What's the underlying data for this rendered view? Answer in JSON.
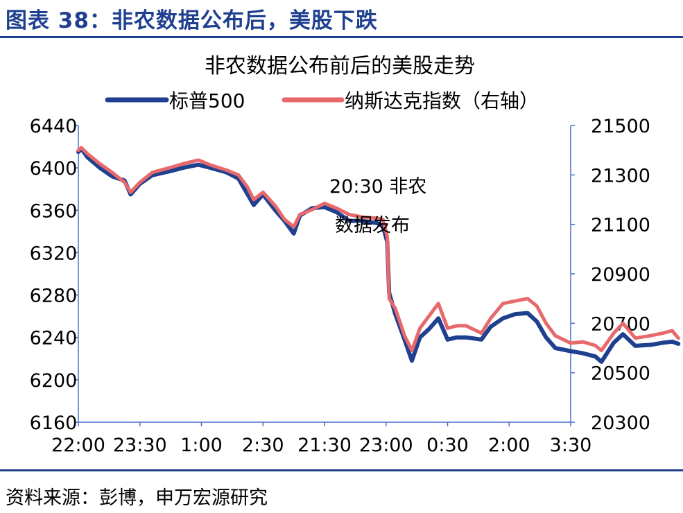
{
  "figure_title": "图表 38：非农数据公布后，美股下跌",
  "source": "资料来源：彭博，申万宏源研究",
  "colors": {
    "accent": "#1f3f8f",
    "axis": "#4472c4",
    "sp500": "#1f3f8f",
    "nasdaq": "#e8696b"
  },
  "chart_data": {
    "type": "line",
    "title": "非农数据公布前后的美股走势",
    "x_tick_labels": [
      "22:00",
      "23:30",
      "1:00",
      "2:30",
      "21:30",
      "23:00",
      "0:30",
      "2:00",
      "3:30"
    ],
    "left_axis": {
      "ylim": [
        6160,
        6440
      ],
      "ticks": [
        "6440",
        "6400",
        "6360",
        "6320",
        "6280",
        "6240",
        "6200",
        "6160"
      ]
    },
    "right_axis": {
      "ylim": [
        20300,
        21500
      ],
      "ticks": [
        "21500",
        "21300",
        "21100",
        "20900",
        "20700",
        "20500",
        "20300"
      ]
    },
    "annotation_line1": "20:30 非农",
    "annotation_line2": "数据发布",
    "legend_position": "top",
    "series": [
      {
        "name": "标普500",
        "axis": "left",
        "points": [
          [
            0,
            6415
          ],
          [
            0.05,
            6418
          ],
          [
            0.15,
            6410
          ],
          [
            0.35,
            6400
          ],
          [
            0.55,
            6392
          ],
          [
            0.75,
            6388
          ],
          [
            0.85,
            6375
          ],
          [
            1.0,
            6385
          ],
          [
            1.2,
            6393
          ],
          [
            1.5,
            6397
          ],
          [
            1.7,
            6400
          ],
          [
            1.95,
            6403
          ],
          [
            2.15,
            6400
          ],
          [
            2.4,
            6396
          ],
          [
            2.6,
            6390
          ],
          [
            2.75,
            6375
          ],
          [
            2.85,
            6365
          ],
          [
            3.0,
            6375
          ],
          [
            3.2,
            6360
          ],
          [
            3.35,
            6350
          ],
          [
            3.5,
            6338
          ],
          [
            3.6,
            6355
          ],
          [
            3.8,
            6362
          ],
          [
            4.0,
            6363
          ],
          [
            4.2,
            6358
          ],
          [
            4.4,
            6350
          ],
          [
            4.6,
            6350
          ],
          [
            4.85,
            6348
          ],
          [
            4.95,
            6345
          ],
          [
            5.02,
            6330
          ],
          [
            5.05,
            6282
          ],
          [
            5.15,
            6262
          ],
          [
            5.3,
            6238
          ],
          [
            5.42,
            6218
          ],
          [
            5.55,
            6240
          ],
          [
            5.7,
            6248
          ],
          [
            5.85,
            6258
          ],
          [
            6.0,
            6238
          ],
          [
            6.15,
            6240
          ],
          [
            6.3,
            6240
          ],
          [
            6.55,
            6238
          ],
          [
            6.7,
            6250
          ],
          [
            6.9,
            6258
          ],
          [
            7.1,
            6262
          ],
          [
            7.3,
            6263
          ],
          [
            7.45,
            6255
          ],
          [
            7.6,
            6240
          ],
          [
            7.75,
            6230
          ],
          [
            8.0,
            6227
          ],
          [
            8.2,
            6225
          ],
          [
            8.4,
            6222
          ],
          [
            8.5,
            6217
          ],
          [
            8.7,
            6235
          ],
          [
            8.85,
            6243
          ],
          [
            9.05,
            6232
          ],
          [
            9.3,
            6233
          ],
          [
            9.5,
            6235
          ],
          [
            9.65,
            6236
          ],
          [
            9.75,
            6234
          ]
        ]
      },
      {
        "name": "纳斯达克指数（右轴）",
        "axis": "right",
        "points": [
          [
            0,
            21400
          ],
          [
            0.05,
            21410
          ],
          [
            0.15,
            21385
          ],
          [
            0.35,
            21345
          ],
          [
            0.55,
            21310
          ],
          [
            0.75,
            21270
          ],
          [
            0.85,
            21230
          ],
          [
            1.0,
            21270
          ],
          [
            1.2,
            21310
          ],
          [
            1.5,
            21330
          ],
          [
            1.7,
            21345
          ],
          [
            1.95,
            21360
          ],
          [
            2.15,
            21340
          ],
          [
            2.4,
            21320
          ],
          [
            2.6,
            21300
          ],
          [
            2.75,
            21250
          ],
          [
            2.85,
            21200
          ],
          [
            3.0,
            21230
          ],
          [
            3.2,
            21175
          ],
          [
            3.35,
            21120
          ],
          [
            3.5,
            21090
          ],
          [
            3.6,
            21140
          ],
          [
            3.8,
            21160
          ],
          [
            4.0,
            21185
          ],
          [
            4.2,
            21165
          ],
          [
            4.4,
            21140
          ],
          [
            4.6,
            21130
          ],
          [
            4.85,
            21125
          ],
          [
            4.95,
            21120
          ],
          [
            5.02,
            21050
          ],
          [
            5.05,
            20800
          ],
          [
            5.15,
            20760
          ],
          [
            5.3,
            20650
          ],
          [
            5.42,
            20590
          ],
          [
            5.55,
            20680
          ],
          [
            5.7,
            20730
          ],
          [
            5.85,
            20780
          ],
          [
            6.0,
            20680
          ],
          [
            6.15,
            20690
          ],
          [
            6.3,
            20690
          ],
          [
            6.55,
            20660
          ],
          [
            6.7,
            20720
          ],
          [
            6.9,
            20780
          ],
          [
            7.1,
            20790
          ],
          [
            7.3,
            20800
          ],
          [
            7.45,
            20770
          ],
          [
            7.6,
            20700
          ],
          [
            7.75,
            20650
          ],
          [
            8.0,
            20620
          ],
          [
            8.2,
            20625
          ],
          [
            8.4,
            20610
          ],
          [
            8.5,
            20590
          ],
          [
            8.7,
            20660
          ],
          [
            8.85,
            20700
          ],
          [
            9.05,
            20640
          ],
          [
            9.3,
            20650
          ],
          [
            9.5,
            20660
          ],
          [
            9.65,
            20670
          ],
          [
            9.75,
            20640
          ]
        ]
      }
    ]
  }
}
